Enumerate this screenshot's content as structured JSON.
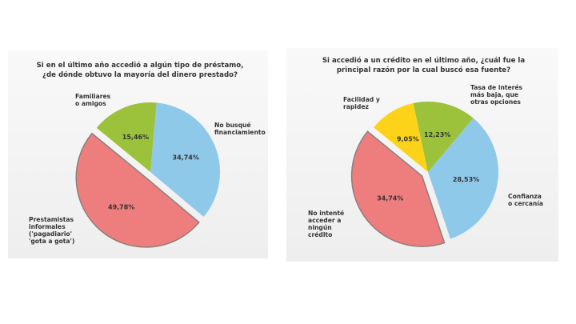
{
  "chart_data": [
    {
      "type": "pie",
      "title_line1": "Si en el último año accedió a algún tipo de préstamo,",
      "title_line2": "¿de dónde obtuvo la mayoría del dinero prestado?",
      "slices": [
        {
          "label": "No busqué\nfinanciamiento",
          "value": 34.74,
          "text": "34,74%",
          "color": "#8ec9ea",
          "exploded": false
        },
        {
          "label": "Prestamistas\ninformales\n('pagadiario'\n'gota a gota')",
          "value": 49.78,
          "text": "49,78%",
          "color": "#ee7e7d",
          "exploded": true
        },
        {
          "label": "Familiares\no amigos",
          "value": 15.46,
          "text": "15,46%",
          "color": "#9bc23a",
          "exploded": false
        }
      ]
    },
    {
      "type": "pie",
      "title_line1": "Si accedió a un crédito en el último año, ¿cuál fue la",
      "title_line2": "principal razón por la cual buscó esa fuente?",
      "slices": [
        {
          "label": "Confianza\no cercanía",
          "value": 28.53,
          "text": "28,53%",
          "color": "#8ec9ea",
          "exploded": false
        },
        {
          "label": "No intenté\nacceder a\nningún\ncrédito",
          "value": 34.74,
          "text": "34,74%",
          "color": "#ee7e7d",
          "exploded": true
        },
        {
          "label": "Facilidad y\nrapidez",
          "value": 9.05,
          "text": "9,05%",
          "color": "#fdd31a",
          "exploded": false
        },
        {
          "label": "Tasa de interés\nmás baja, que\notras opciones",
          "value": 12.23,
          "text": "12,23%",
          "color": "#9bc23a",
          "exploded": false
        }
      ]
    }
  ]
}
